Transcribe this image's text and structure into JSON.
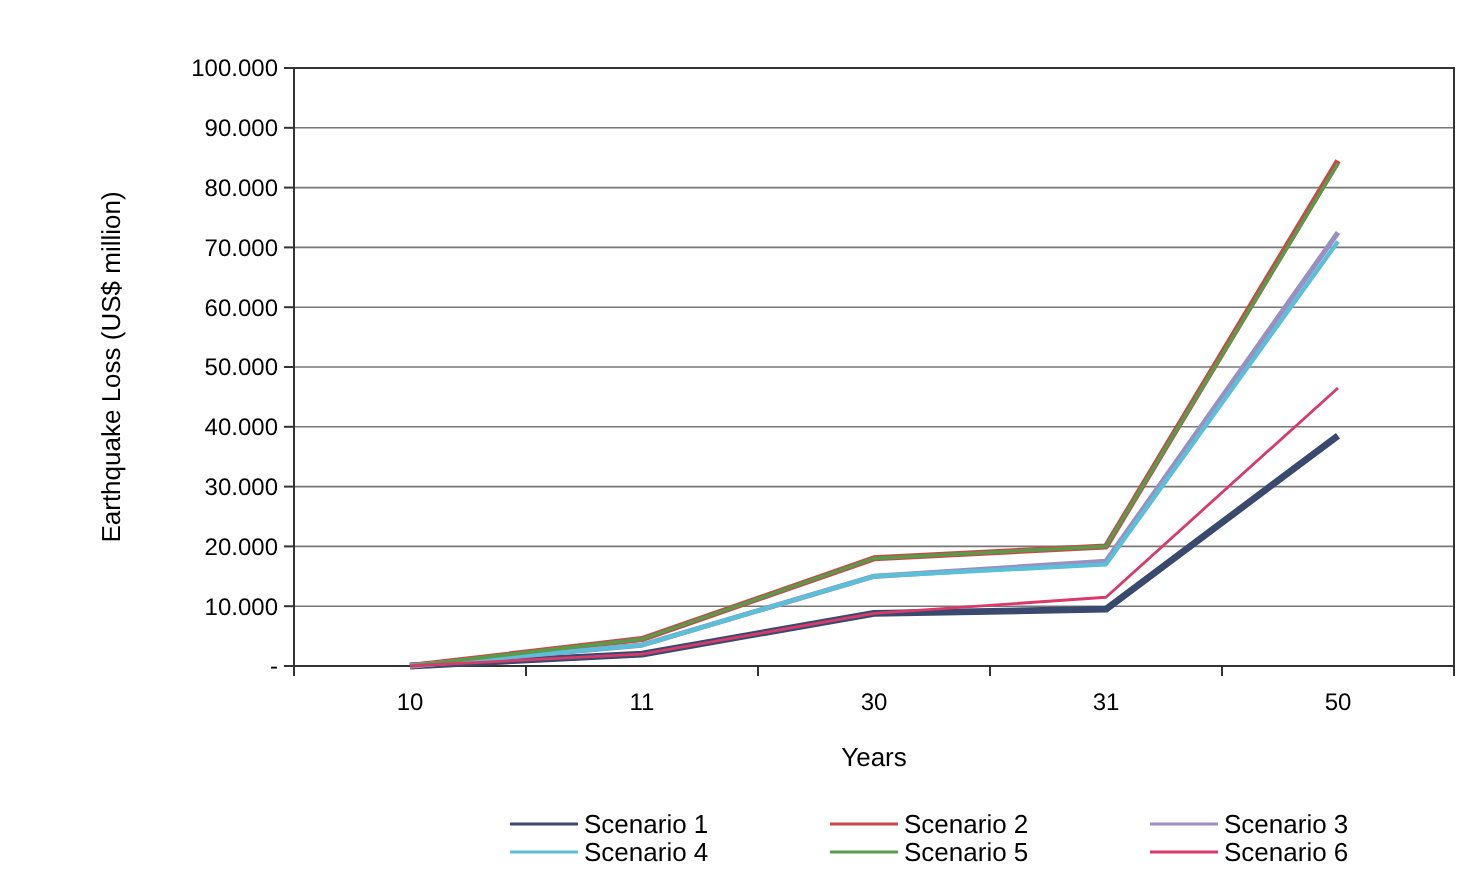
{
  "chart_data": {
    "type": "line",
    "xlabel": "Years",
    "ylabel": "Earthquake Loss (US$ million)",
    "categories": [
      "10",
      "11",
      "30",
      "31",
      "50"
    ],
    "ylim": [
      0,
      100000
    ],
    "yticks": [
      {
        "value": 0,
        "label": "-"
      },
      {
        "value": 10000,
        "label": "10.000"
      },
      {
        "value": 20000,
        "label": "20.000"
      },
      {
        "value": 30000,
        "label": "30.000"
      },
      {
        "value": 40000,
        "label": "40.000"
      },
      {
        "value": 50000,
        "label": "50.000"
      },
      {
        "value": 60000,
        "label": "60.000"
      },
      {
        "value": 70000,
        "label": "70.000"
      },
      {
        "value": 80000,
        "label": "80.000"
      },
      {
        "value": 90000,
        "label": "90.000"
      },
      {
        "value": 100000,
        "label": "100.000"
      }
    ],
    "grid": "y",
    "legend": "bottom",
    "marker": "none",
    "series": [
      {
        "name": "Scenario 1",
        "color": "#3a4a6e",
        "values": [
          0,
          2000,
          8800,
          9500,
          38500
        ]
      },
      {
        "name": "Scenario 2",
        "color": "#c8484a",
        "values": [
          0,
          4500,
          18000,
          20000,
          84500
        ]
      },
      {
        "name": "Scenario 3",
        "color": "#9a8fc0",
        "values": [
          0,
          3500,
          15000,
          17500,
          72500
        ]
      },
      {
        "name": "Scenario 4",
        "color": "#5bbfd8",
        "values": [
          0,
          3500,
          15000,
          17000,
          71000
        ]
      },
      {
        "name": "Scenario 5",
        "color": "#5a9a4a",
        "values": [
          0,
          4500,
          18000,
          20000,
          84000
        ]
      },
      {
        "name": "Scenario 6",
        "color": "#d83a6a",
        "values": [
          0,
          2000,
          8800,
          11500,
          46500
        ]
      }
    ]
  }
}
